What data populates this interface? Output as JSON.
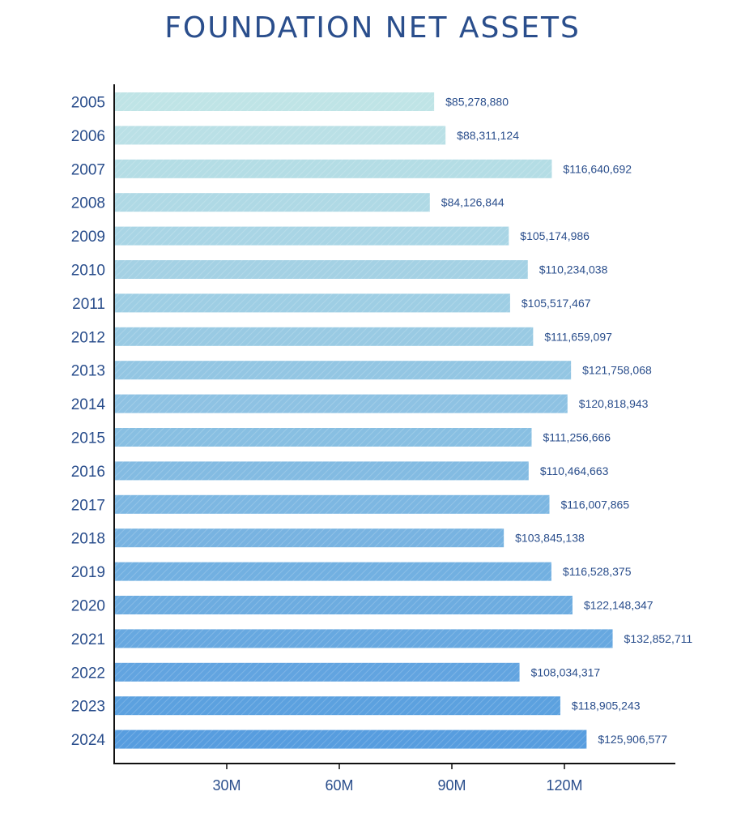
{
  "chart_data": {
    "type": "bar",
    "orientation": "horizontal",
    "title": "FOUNDATION NET ASSETS",
    "categories": [
      "2005",
      "2006",
      "2007",
      "2008",
      "2009",
      "2010",
      "2011",
      "2012",
      "2013",
      "2014",
      "2015",
      "2016",
      "2017",
      "2018",
      "2019",
      "2020",
      "2021",
      "2022",
      "2023",
      "2024"
    ],
    "values": [
      85278880,
      88311124,
      116640692,
      84126844,
      105174986,
      110234038,
      105517467,
      111659097,
      121758068,
      120818943,
      111256666,
      110464663,
      116007865,
      103845138,
      116528375,
      122148347,
      132852711,
      108034317,
      118905243,
      125906577
    ],
    "value_labels": [
      "$85,278,880",
      "$88,311,124",
      "$116,640,692",
      "$84,126,844",
      "$105,174,986",
      "$110,234,038",
      "$105,517,467",
      "$111,659,097",
      "$121,758,068",
      "$120,818,943",
      "$111,256,666",
      "$110,464,663",
      "$116,007,865",
      "$103,845,138",
      "$116,528,375",
      "$122,148,347",
      "$132,852,711",
      "$108,034,317",
      "$118,905,243",
      "$125,906,577"
    ],
    "x_ticks": [
      30000000,
      60000000,
      90000000,
      120000000
    ],
    "x_tick_labels": [
      "30M",
      "60M",
      "90M",
      "120M"
    ],
    "xlim": [
      0,
      150000000
    ],
    "grid": false,
    "colors": {
      "bar_start": "#bfe4e6",
      "bar_end": "#579ddf",
      "text": "#2a4e8c",
      "axis": "#111111"
    }
  }
}
